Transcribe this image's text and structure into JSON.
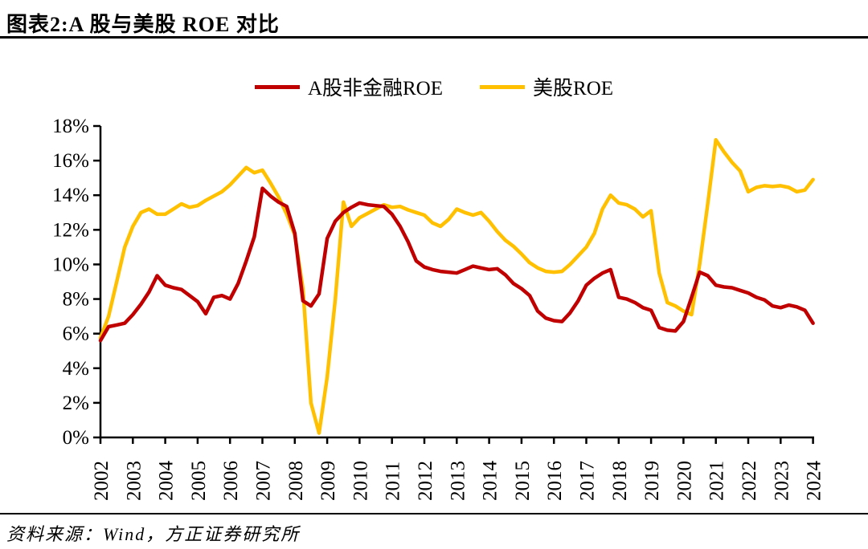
{
  "title": "图表2:A 股与美股 ROE 对比",
  "source": "资料来源：Wind，方正证券研究所",
  "legend": [
    {
      "label": "A股非金融ROE",
      "color": "#C00000"
    },
    {
      "label": "美股ROE",
      "color": "#FFC000"
    }
  ],
  "colors": {
    "a_share": "#C00000",
    "us": "#FFC000",
    "axis": "#000000",
    "background": "#FFFFFF"
  },
  "chart_data": {
    "type": "line",
    "title": "图表2:A 股与美股 ROE 对比",
    "xlabel": "",
    "ylabel": "",
    "ylim": [
      0,
      18
    ],
    "y_tick_labels": [
      "0%",
      "2%",
      "4%",
      "6%",
      "8%",
      "10%",
      "12%",
      "14%",
      "16%",
      "18%"
    ],
    "x_tick_labels": [
      "2002",
      "2003",
      "2004",
      "2005",
      "2006",
      "2007",
      "2008",
      "2009",
      "2010",
      "2011",
      "2012",
      "2013",
      "2014",
      "2015",
      "2016",
      "2017",
      "2018",
      "2019",
      "2020",
      "2021",
      "2022",
      "2023",
      "2024"
    ],
    "grid": false,
    "legend_position": "top",
    "x": [
      2002,
      2002.25,
      2002.5,
      2002.75,
      2003,
      2003.25,
      2003.5,
      2003.75,
      2004,
      2004.25,
      2004.5,
      2004.75,
      2005,
      2005.25,
      2005.5,
      2005.75,
      2006,
      2006.25,
      2006.5,
      2006.75,
      2007,
      2007.25,
      2007.5,
      2007.75,
      2008,
      2008.25,
      2008.5,
      2008.75,
      2009,
      2009.25,
      2009.5,
      2009.75,
      2010,
      2010.25,
      2010.5,
      2010.75,
      2011,
      2011.25,
      2011.5,
      2011.75,
      2012,
      2012.25,
      2012.5,
      2012.75,
      2013,
      2013.25,
      2013.5,
      2013.75,
      2014,
      2014.25,
      2014.5,
      2014.75,
      2015,
      2015.25,
      2015.5,
      2015.75,
      2016,
      2016.25,
      2016.5,
      2016.75,
      2017,
      2017.25,
      2017.5,
      2017.75,
      2018,
      2018.25,
      2018.5,
      2018.75,
      2019,
      2019.25,
      2019.5,
      2019.75,
      2020,
      2020.25,
      2020.5,
      2020.75,
      2021,
      2021.25,
      2021.5,
      2021.75,
      2022,
      2022.25,
      2022.5,
      2022.75,
      2023,
      2023.25,
      2023.5,
      2023.75,
      2024
    ],
    "series": [
      {
        "name": "A股非金融ROE",
        "color": "#C00000",
        "values": [
          5.6,
          6.4,
          6.5,
          6.6,
          7.1,
          7.7,
          8.4,
          9.35,
          8.8,
          8.65,
          8.55,
          8.2,
          7.85,
          7.15,
          8.1,
          8.2,
          8.0,
          8.9,
          10.2,
          11.6,
          14.4,
          13.95,
          13.6,
          13.35,
          11.8,
          7.9,
          7.6,
          8.3,
          11.5,
          12.5,
          13.0,
          13.3,
          13.55,
          13.45,
          13.4,
          13.35,
          12.9,
          12.2,
          11.3,
          10.2,
          9.85,
          9.7,
          9.6,
          9.55,
          9.5,
          9.7,
          9.9,
          9.8,
          9.7,
          9.75,
          9.4,
          8.9,
          8.6,
          8.2,
          7.3,
          6.9,
          6.75,
          6.7,
          7.2,
          7.9,
          8.8,
          9.2,
          9.5,
          9.7,
          8.1,
          8.0,
          7.8,
          7.5,
          7.35,
          6.35,
          6.2,
          6.15,
          6.7,
          8.1,
          9.55,
          9.35,
          8.8,
          8.7,
          8.65,
          8.5,
          8.35,
          8.1,
          7.95,
          7.6,
          7.5,
          7.65,
          7.55,
          7.35,
          6.6
        ]
      },
      {
        "name": "美股ROE",
        "color": "#FFC000",
        "values": [
          5.75,
          7.0,
          9.0,
          11.0,
          12.2,
          13.0,
          13.2,
          12.9,
          12.9,
          13.2,
          13.5,
          13.3,
          13.4,
          13.7,
          13.95,
          14.2,
          14.6,
          15.1,
          15.6,
          15.3,
          15.45,
          14.7,
          13.9,
          12.9,
          11.7,
          8.6,
          2.0,
          0.25,
          3.5,
          8.0,
          13.6,
          12.2,
          12.7,
          12.95,
          13.2,
          13.45,
          13.3,
          13.35,
          13.15,
          13.0,
          12.85,
          12.4,
          12.2,
          12.6,
          13.2,
          13.0,
          12.85,
          13.0,
          12.5,
          11.9,
          11.4,
          11.05,
          10.6,
          10.1,
          9.8,
          9.6,
          9.55,
          9.6,
          10.0,
          10.5,
          11.0,
          11.8,
          13.2,
          14.0,
          13.55,
          13.45,
          13.2,
          12.75,
          13.1,
          9.5,
          7.8,
          7.6,
          7.3,
          7.1,
          10.0,
          13.5,
          17.2,
          16.5,
          15.9,
          15.4,
          14.2,
          14.45,
          14.55,
          14.5,
          14.55,
          14.45,
          14.2,
          14.3,
          14.9
        ]
      }
    ]
  }
}
